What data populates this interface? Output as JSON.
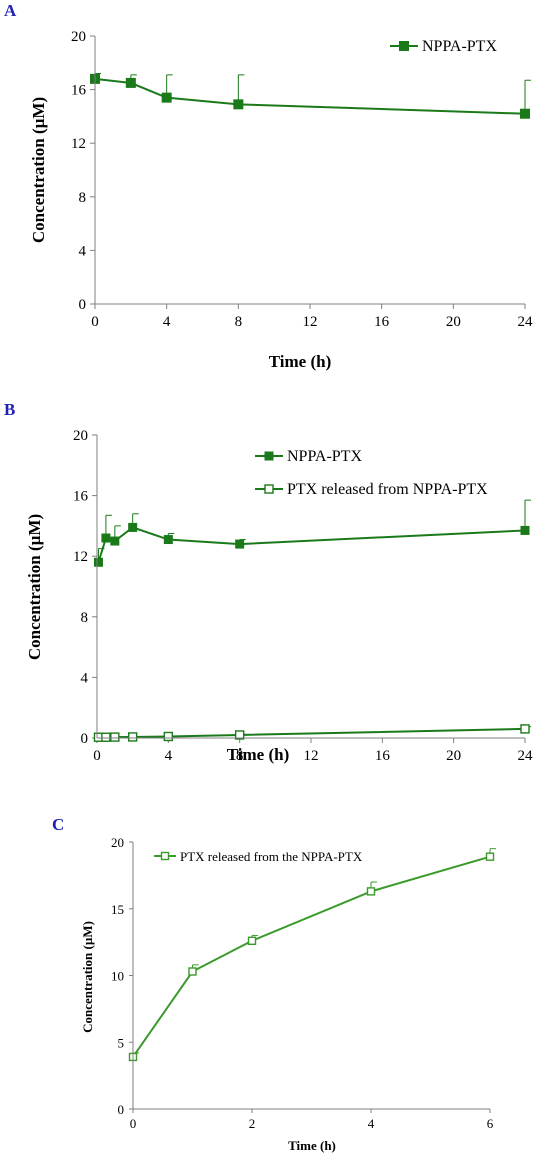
{
  "chart_data": [
    {
      "panel_label": "A",
      "type": "line",
      "xlabel": "Time (h)",
      "ylabel": "Concentration (µM)",
      "xlim": [
        0,
        24
      ],
      "ylim": [
        0,
        20
      ],
      "xticks": [
        "0",
        "4",
        "8",
        "12",
        "16",
        "20",
        "24"
      ],
      "yticks": [
        "0",
        "4",
        "8",
        "12",
        "16",
        "20"
      ],
      "legend_position": "top-right",
      "grid": false,
      "series": [
        {
          "name": "NPPA-PTX",
          "marker": "filled-square",
          "color": "#1a7a1a",
          "x": [
            0,
            2,
            4,
            8,
            24
          ],
          "y": [
            16.8,
            16.5,
            15.4,
            14.9,
            14.2
          ],
          "error": [
            0.4,
            0.6,
            1.7,
            2.2,
            2.5
          ]
        }
      ]
    },
    {
      "panel_label": "B",
      "type": "line",
      "xlabel": "Time (h)",
      "ylabel": "Concentration (µM)",
      "xlim": [
        0,
        24
      ],
      "ylim": [
        0,
        20
      ],
      "xticks": [
        "0",
        "4",
        "8",
        "12",
        "16",
        "20",
        "24"
      ],
      "yticks": [
        "0",
        "4",
        "8",
        "12",
        "16",
        "20"
      ],
      "legend_position": "top-right",
      "grid": false,
      "series": [
        {
          "name": "NPPA-PTX",
          "marker": "filled-square",
          "color": "#1a7a1a",
          "x": [
            0.083,
            0.5,
            1,
            2,
            4,
            8,
            24
          ],
          "y": [
            11.6,
            13.2,
            13.0,
            13.9,
            13.1,
            12.8,
            13.7
          ],
          "error": [
            0.9,
            1.5,
            1.0,
            0.9,
            0.4,
            0.3,
            2.0
          ]
        },
        {
          "name": "PTX released from NPPA-PTX",
          "marker": "open-square",
          "color": "#1a7a1a",
          "x": [
            0.083,
            0.5,
            1,
            2,
            4,
            8,
            24
          ],
          "y": [
            0.05,
            0.05,
            0.06,
            0.07,
            0.1,
            0.2,
            0.6
          ],
          "error": [
            0.02,
            0.02,
            0.02,
            0.02,
            0.03,
            0.05,
            0.15
          ]
        }
      ]
    },
    {
      "panel_label": "C",
      "type": "line",
      "xlabel": "Time (h)",
      "ylabel": "Concentration (µM)",
      "xlim": [
        0,
        6
      ],
      "ylim": [
        0,
        20
      ],
      "xticks": [
        "0",
        "2",
        "4",
        "6"
      ],
      "yticks": [
        "0",
        "5",
        "10",
        "15",
        "20"
      ],
      "legend_position": "top-left",
      "grid": false,
      "series": [
        {
          "name": "PTX released from the NPPA-PTX",
          "marker": "open-square",
          "color": "#3a9a2a",
          "x": [
            0,
            1,
            2,
            4,
            6
          ],
          "y": [
            3.9,
            10.3,
            12.6,
            16.3,
            18.9
          ],
          "error": [
            0.3,
            0.5,
            0.4,
            0.7,
            0.6
          ]
        }
      ]
    }
  ]
}
